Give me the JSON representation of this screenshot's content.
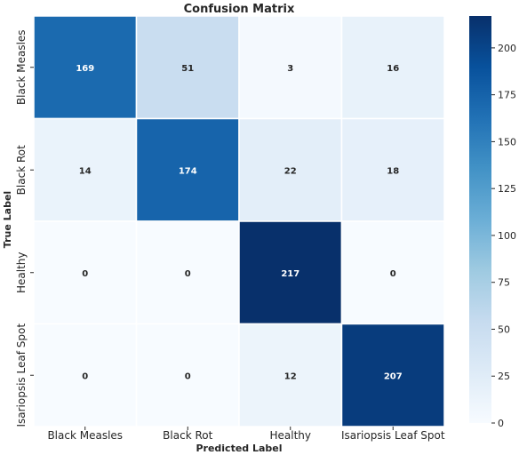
{
  "chart_data": {
    "type": "heatmap",
    "title": "Confusion Matrix",
    "xlabel": "Predicted Label",
    "ylabel": "True Label",
    "x_categories": [
      "Black Measles",
      "Black Rot",
      "Healthy",
      "Isariopsis Leaf Spot"
    ],
    "y_categories": [
      "Black Measles",
      "Black Rot",
      "Healthy",
      "Isariopsis Leaf Spot"
    ],
    "values": [
      [
        169,
        51,
        3,
        16
      ],
      [
        14,
        174,
        22,
        18
      ],
      [
        0,
        0,
        217,
        0
      ],
      [
        0,
        0,
        12,
        207
      ]
    ],
    "colorbar": {
      "min": 0,
      "max": 217,
      "ticks": [
        0,
        25,
        50,
        75,
        100,
        125,
        150,
        175,
        200
      ],
      "colormap": "Blues"
    }
  }
}
